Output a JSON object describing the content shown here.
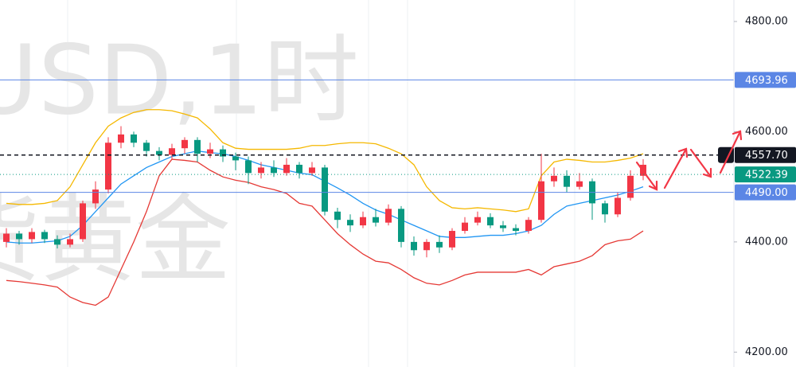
{
  "chart_data": {
    "type": "candlestick",
    "watermark": [
      "USD,1时",
      "货黄金"
    ],
    "ylim": [
      4173,
      4839
    ],
    "yticks": [
      {
        "value": 4800,
        "label": "4800.00"
      },
      {
        "value": 4600,
        "label": "4600.00"
      },
      {
        "value": 4400,
        "label": "4400.00"
      },
      {
        "value": 4200,
        "label": "4200.00"
      }
    ],
    "up_color": "#f23645",
    "down_color": "#089981",
    "candles": [
      {
        "open": 4400,
        "close": 4415,
        "high": 4425,
        "low": 4390
      },
      {
        "open": 4415,
        "close": 4405,
        "high": 4420,
        "low": 4395
      },
      {
        "open": 4405,
        "close": 4418,
        "high": 4425,
        "low": 4398
      },
      {
        "open": 4418,
        "close": 4405,
        "high": 4422,
        "low": 4398
      },
      {
        "open": 4405,
        "close": 4395,
        "high": 4412,
        "low": 4388
      },
      {
        "open": 4395,
        "close": 4405,
        "high": 4415,
        "low": 4390
      },
      {
        "open": 4405,
        "close": 4470,
        "high": 4475,
        "low": 4400
      },
      {
        "open": 4470,
        "close": 4495,
        "high": 4510,
        "low": 4460
      },
      {
        "open": 4495,
        "close": 4580,
        "high": 4590,
        "low": 4488
      },
      {
        "open": 4580,
        "close": 4595,
        "high": 4610,
        "low": 4570
      },
      {
        "open": 4595,
        "close": 4580,
        "high": 4600,
        "low": 4572
      },
      {
        "open": 4580,
        "close": 4565,
        "high": 4585,
        "low": 4555
      },
      {
        "open": 4565,
        "close": 4558,
        "high": 4572,
        "low": 4548
      },
      {
        "open": 4558,
        "close": 4570,
        "high": 4578,
        "low": 4550
      },
      {
        "open": 4570,
        "close": 4585,
        "high": 4590,
        "low": 4560
      },
      {
        "open": 4585,
        "close": 4560,
        "high": 4590,
        "low": 4545
      },
      {
        "open": 4560,
        "close": 4568,
        "high": 4580,
        "low": 4552
      },
      {
        "open": 4568,
        "close": 4555,
        "high": 4575,
        "low": 4545
      },
      {
        "open": 4555,
        "close": 4548,
        "high": 4562,
        "low": 4530
      },
      {
        "open": 4548,
        "close": 4525,
        "high": 4555,
        "low": 4505
      },
      {
        "open": 4525,
        "close": 4535,
        "high": 4545,
        "low": 4515
      },
      {
        "open": 4535,
        "close": 4525,
        "high": 4548,
        "low": 4518
      },
      {
        "open": 4525,
        "close": 4540,
        "high": 4552,
        "low": 4520
      },
      {
        "open": 4540,
        "close": 4525,
        "high": 4545,
        "low": 4515
      },
      {
        "open": 4525,
        "close": 4535,
        "high": 4545,
        "low": 4520
      },
      {
        "open": 4535,
        "close": 4455,
        "high": 4540,
        "low": 4448
      },
      {
        "open": 4455,
        "close": 4440,
        "high": 4462,
        "low": 4425
      },
      {
        "open": 4440,
        "close": 4430,
        "high": 4450,
        "low": 4418
      },
      {
        "open": 4430,
        "close": 4445,
        "high": 4455,
        "low": 4425
      },
      {
        "open": 4445,
        "close": 4435,
        "high": 4460,
        "low": 4428
      },
      {
        "open": 4435,
        "close": 4460,
        "high": 4468,
        "low": 4430
      },
      {
        "open": 4460,
        "close": 4400,
        "high": 4465,
        "low": 4390
      },
      {
        "open": 4400,
        "close": 4385,
        "high": 4410,
        "low": 4375
      },
      {
        "open": 4385,
        "close": 4400,
        "high": 4405,
        "low": 4372
      },
      {
        "open": 4400,
        "close": 4390,
        "high": 4412,
        "low": 4380
      },
      {
        "open": 4390,
        "close": 4420,
        "high": 4425,
        "low": 4385
      },
      {
        "open": 4420,
        "close": 4435,
        "high": 4445,
        "low": 4415
      },
      {
        "open": 4435,
        "close": 4445,
        "high": 4455,
        "low": 4430
      },
      {
        "open": 4445,
        "close": 4430,
        "high": 4452,
        "low": 4425
      },
      {
        "open": 4430,
        "close": 4425,
        "high": 4438,
        "low": 4418
      },
      {
        "open": 4425,
        "close": 4420,
        "high": 4432,
        "low": 4412
      },
      {
        "open": 4420,
        "close": 4440,
        "high": 4445,
        "low": 4415
      },
      {
        "open": 4440,
        "close": 4510,
        "high": 4560,
        "low": 4435
      },
      {
        "open": 4510,
        "close": 4520,
        "high": 4535,
        "low": 4500
      },
      {
        "open": 4520,
        "close": 4500,
        "high": 4530,
        "low": 4490
      },
      {
        "open": 4500,
        "close": 4510,
        "high": 4525,
        "low": 4495
      },
      {
        "open": 4510,
        "close": 4470,
        "high": 4515,
        "low": 4440
      },
      {
        "open": 4470,
        "close": 4450,
        "high": 4475,
        "low": 4435
      },
      {
        "open": 4450,
        "close": 4480,
        "high": 4490,
        "low": 4445
      },
      {
        "open": 4480,
        "close": 4520,
        "high": 4530,
        "low": 4475
      },
      {
        "open": 4520,
        "close": 4540,
        "high": 4550,
        "low": 4512
      }
    ],
    "bands": [
      {
        "color": "#f5b800",
        "values": [
          4470,
          4468,
          4468,
          4470,
          4475,
          4500,
          4540,
          4580,
          4610,
          4625,
          4635,
          4640,
          4640,
          4638,
          4632,
          4625,
          4605,
          4580,
          4570,
          4568,
          4568,
          4568,
          4568,
          4570,
          4575,
          4575,
          4578,
          4580,
          4580,
          4578,
          4570,
          4560,
          4540,
          4500,
          4475,
          4462,
          4460,
          4462,
          4460,
          4458,
          4455,
          4460,
          4520,
          4545,
          4550,
          4548,
          4545,
          4545,
          4548,
          4552,
          4560
        ]
      },
      {
        "color": "#2196f3",
        "values": [
          4400,
          4398,
          4398,
          4400,
          4402,
          4410,
          4430,
          4455,
          4480,
          4505,
          4520,
          4535,
          4545,
          4555,
          4560,
          4565,
          4562,
          4560,
          4555,
          4548,
          4540,
          4535,
          4530,
          4525,
          4522,
          4510,
          4498,
          4485,
          4470,
          4458,
          4450,
          4440,
          4430,
          4420,
          4410,
          4408,
          4408,
          4410,
          4412,
          4412,
          4415,
          4420,
          4430,
          4450,
          4465,
          4470,
          4475,
          4480,
          4485,
          4492,
          4500
        ]
      },
      {
        "color": "#e53935",
        "values": [
          4330,
          4328,
          4325,
          4322,
          4318,
          4300,
          4290,
          4285,
          4300,
          4350,
          4400,
          4455,
          4520,
          4550,
          4548,
          4545,
          4530,
          4518,
          4512,
          4508,
          4500,
          4495,
          4488,
          4470,
          4465,
          4440,
          4415,
          4395,
          4378,
          4365,
          4362,
          4350,
          4335,
          4325,
          4322,
          4330,
          4340,
          4345,
          4345,
          4345,
          4345,
          4350,
          4340,
          4355,
          4360,
          4365,
          4375,
          4395,
          4402,
          4405,
          4420
        ]
      }
    ],
    "price_lines": [
      {
        "value": 4693.96,
        "label": "4693.96",
        "color": "#5b86e5",
        "style": "solid"
      },
      {
        "value": 4557.7,
        "label": "4557.70",
        "color": "#131722",
        "style": "dashed"
      },
      {
        "value": 4522.39,
        "label": "4522.39",
        "color": "#089981",
        "style": "dotted"
      },
      {
        "value": 4490,
        "label": "4490.00",
        "color": "#5b86e5",
        "style": "solid"
      }
    ]
  }
}
